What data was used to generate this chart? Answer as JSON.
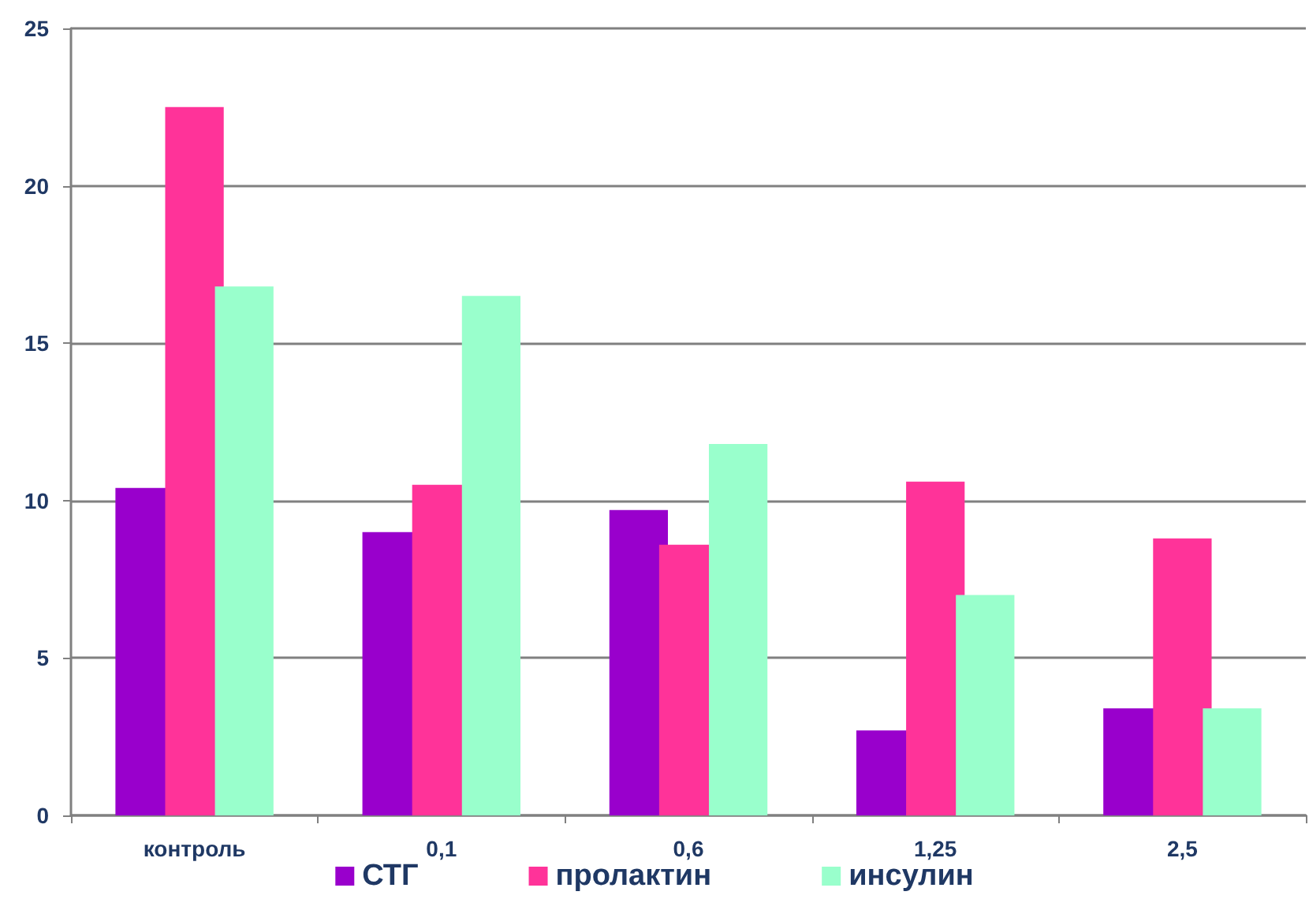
{
  "chart_data": {
    "type": "bar",
    "categories": [
      "контроль",
      "0,1",
      "0,6",
      "1,25",
      "2,5"
    ],
    "series": [
      {
        "name": "СТГ",
        "color": "#9900cc",
        "values": [
          10.4,
          9.0,
          9.7,
          2.7,
          3.4
        ]
      },
      {
        "name": "пролактин",
        "color": "#ff3399",
        "values": [
          22.5,
          10.5,
          8.6,
          10.6,
          8.8
        ]
      },
      {
        "name": "инсулин",
        "color": "#99ffcc",
        "values": [
          16.8,
          16.5,
          11.8,
          7.0,
          3.4
        ]
      }
    ],
    "ylim": [
      0,
      25
    ],
    "yticks": [
      0,
      5,
      10,
      15,
      20,
      25
    ],
    "grid": "y",
    "legend": "bottom"
  }
}
